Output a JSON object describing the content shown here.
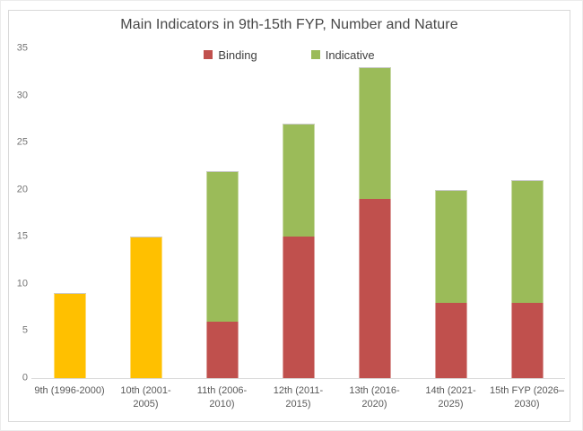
{
  "chart_data": {
    "type": "bar",
    "stacked": true,
    "title": "Main Indicators in 9th-15th FYP, Number and Nature",
    "categories": [
      "9th (1996-2000)",
      "10th (2001-2005)",
      "11th (2006-2010)",
      "12th (2011-2015)",
      "13th (2016-2020)",
      "14th (2021-2025)",
      "15th FYP (2026–2030)"
    ],
    "category_lines": [
      [
        "9th (1996-2000)"
      ],
      [
        "10th (2001-",
        "2005)"
      ],
      [
        "11th (2006-",
        "2010)"
      ],
      [
        "12th (2011-",
        "2015)"
      ],
      [
        "13th (2016-",
        "2020)"
      ],
      [
        "14th (2021-",
        "2025)"
      ],
      [
        "15th FYP (2026–",
        "2030)"
      ]
    ],
    "series": [
      {
        "name": "Binding",
        "color": "#c0504d",
        "in_legend": true,
        "values": [
          0,
          0,
          6,
          15,
          19,
          8,
          8
        ]
      },
      {
        "name": "Indicative",
        "color": "#9bbb59",
        "in_legend": true,
        "values": [
          0,
          0,
          16,
          12,
          14,
          12,
          13
        ]
      },
      {
        "name": "",
        "color": "#ffc000",
        "in_legend": false,
        "values": [
          9,
          15,
          0,
          0,
          0,
          0,
          0
        ]
      }
    ],
    "totals": [
      9,
      15,
      22,
      27,
      33,
      20,
      21
    ],
    "ylim": [
      0,
      35
    ],
    "yticks": [
      0,
      5,
      10,
      15,
      20,
      25,
      30,
      35
    ],
    "legend": [
      {
        "label": "Binding",
        "color": "#c0504d"
      },
      {
        "label": "Indicative",
        "color": "#9bbb59"
      }
    ],
    "legend_position": "top-center",
    "grid": false
  },
  "colors": {
    "binding": "#c0504d",
    "indicative": "#9bbb59",
    "unlabeled_total": "#ffc000",
    "axis_line": "#d9d9d9",
    "frame_border": "#d9d9d9",
    "title_text": "#474747",
    "tick_text": "#757575",
    "xlabel_text": "#595959"
  }
}
